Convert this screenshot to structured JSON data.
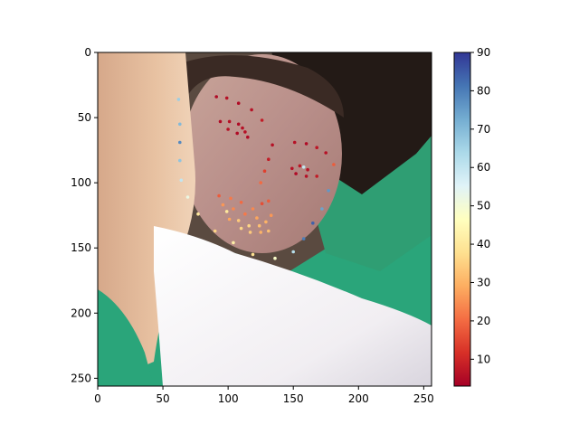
{
  "chart_data": {
    "type": "scatter",
    "title": "",
    "xlabel": "",
    "ylabel": "",
    "xlim": [
      0,
      256
    ],
    "ylim": [
      256,
      0
    ],
    "y_inverted": true,
    "grid": false,
    "background": "photo of a smiling woman with arm raised, white shirt, green background",
    "x_ticks": [
      0,
      50,
      100,
      150,
      200,
      250
    ],
    "y_ticks": [
      0,
      50,
      100,
      150,
      200,
      250
    ],
    "colorbar": {
      "colormap": "RdYlBu",
      "min": 3,
      "max": 90,
      "ticks": [
        10,
        20,
        30,
        40,
        50,
        60,
        70,
        80,
        90
      ]
    },
    "points": [
      {
        "x": 62,
        "y": 36,
        "v": 66
      },
      {
        "x": 63,
        "y": 55,
        "v": 70
      },
      {
        "x": 63,
        "y": 69,
        "v": 78
      },
      {
        "x": 63,
        "y": 83,
        "v": 68
      },
      {
        "x": 64,
        "y": 98,
        "v": 60
      },
      {
        "x": 69,
        "y": 111,
        "v": 52
      },
      {
        "x": 77,
        "y": 124,
        "v": 40
      },
      {
        "x": 90,
        "y": 137,
        "v": 36
      },
      {
        "x": 104,
        "y": 146,
        "v": 42
      },
      {
        "x": 119,
        "y": 155,
        "v": 38
      },
      {
        "x": 136,
        "y": 158,
        "v": 48
      },
      {
        "x": 150,
        "y": 153,
        "v": 62
      },
      {
        "x": 158,
        "y": 143,
        "v": 80
      },
      {
        "x": 165,
        "y": 131,
        "v": 84
      },
      {
        "x": 172,
        "y": 120,
        "v": 74
      },
      {
        "x": 177,
        "y": 106,
        "v": 76
      },
      {
        "x": 91,
        "y": 34,
        "v": 5
      },
      {
        "x": 99,
        "y": 35,
        "v": 6
      },
      {
        "x": 108,
        "y": 39,
        "v": 5
      },
      {
        "x": 118,
        "y": 44,
        "v": 6
      },
      {
        "x": 126,
        "y": 52,
        "v": 8
      },
      {
        "x": 151,
        "y": 69,
        "v": 6
      },
      {
        "x": 160,
        "y": 70,
        "v": 5
      },
      {
        "x": 168,
        "y": 73,
        "v": 7
      },
      {
        "x": 175,
        "y": 77,
        "v": 6
      },
      {
        "x": 181,
        "y": 86,
        "v": 18
      },
      {
        "x": 134,
        "y": 71,
        "v": 6
      },
      {
        "x": 131,
        "y": 82,
        "v": 8
      },
      {
        "x": 128,
        "y": 91,
        "v": 14
      },
      {
        "x": 125,
        "y": 100,
        "v": 20
      },
      {
        "x": 94,
        "y": 53,
        "v": 5
      },
      {
        "x": 101,
        "y": 53,
        "v": 6
      },
      {
        "x": 108,
        "y": 55,
        "v": 5
      },
      {
        "x": 113,
        "y": 61,
        "v": 6
      },
      {
        "x": 107,
        "y": 62,
        "v": 5
      },
      {
        "x": 100,
        "y": 59,
        "v": 6
      },
      {
        "x": 111,
        "y": 58,
        "v": 6
      },
      {
        "x": 115,
        "y": 65,
        "v": 5
      },
      {
        "x": 149,
        "y": 89,
        "v": 6
      },
      {
        "x": 155,
        "y": 87,
        "v": 7
      },
      {
        "x": 161,
        "y": 90,
        "v": 6
      },
      {
        "x": 168,
        "y": 95,
        "v": 8
      },
      {
        "x": 160,
        "y": 95,
        "v": 6
      },
      {
        "x": 152,
        "y": 93,
        "v": 5
      },
      {
        "x": 158,
        "y": 88,
        "v": 60
      },
      {
        "x": 93,
        "y": 110,
        "v": 18
      },
      {
        "x": 102,
        "y": 112,
        "v": 22
      },
      {
        "x": 110,
        "y": 115,
        "v": 20
      },
      {
        "x": 119,
        "y": 120,
        "v": 24
      },
      {
        "x": 126,
        "y": 116,
        "v": 16
      },
      {
        "x": 131,
        "y": 114,
        "v": 18
      },
      {
        "x": 133,
        "y": 125,
        "v": 26
      },
      {
        "x": 131,
        "y": 137,
        "v": 32
      },
      {
        "x": 125,
        "y": 138,
        "v": 30
      },
      {
        "x": 117,
        "y": 138,
        "v": 34
      },
      {
        "x": 110,
        "y": 135,
        "v": 36
      },
      {
        "x": 101,
        "y": 128,
        "v": 28
      },
      {
        "x": 104,
        "y": 120,
        "v": 24
      },
      {
        "x": 113,
        "y": 124,
        "v": 22
      },
      {
        "x": 122,
        "y": 127,
        "v": 28
      },
      {
        "x": 129,
        "y": 130,
        "v": 30
      },
      {
        "x": 124,
        "y": 133,
        "v": 32
      },
      {
        "x": 116,
        "y": 133,
        "v": 36
      },
      {
        "x": 108,
        "y": 129,
        "v": 34
      },
      {
        "x": 99,
        "y": 122,
        "v": 40
      },
      {
        "x": 96,
        "y": 117,
        "v": 26
      }
    ]
  }
}
